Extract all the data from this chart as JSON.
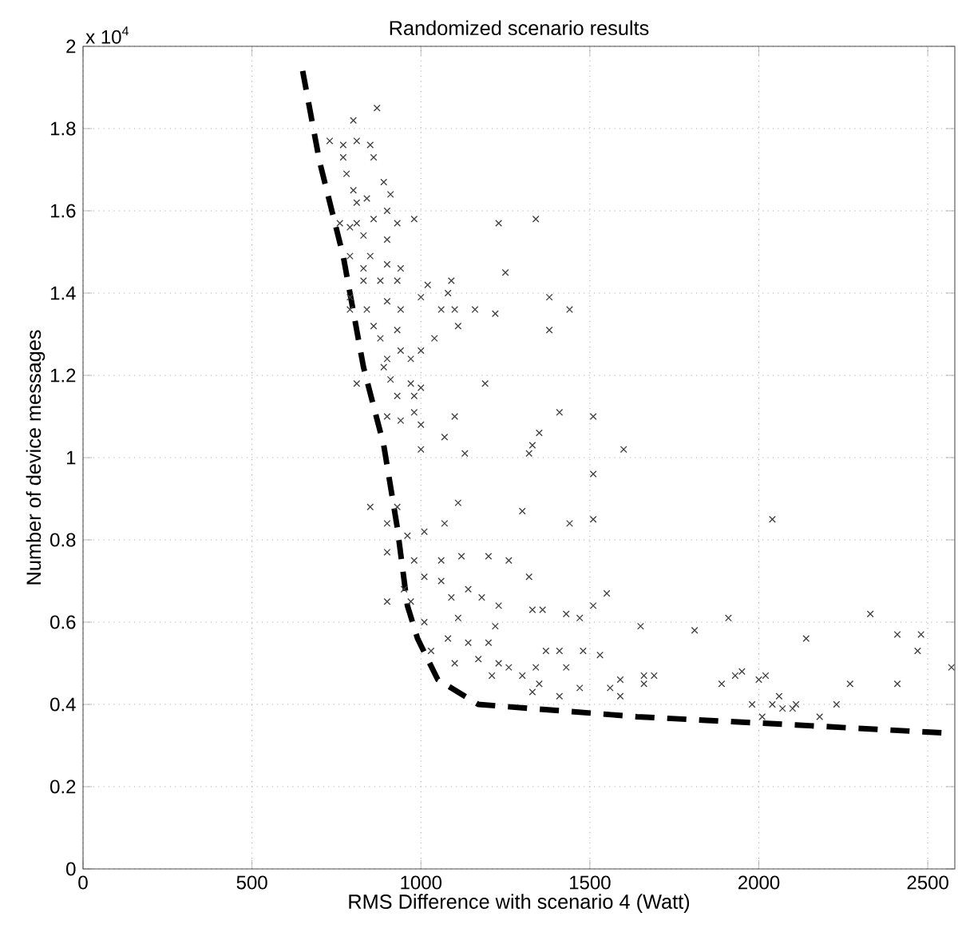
{
  "chart_data": {
    "type": "scatter",
    "title": "Randomized scenario results",
    "xlabel": "RMS Difference with scenario 4 (Watt)",
    "ylabel": "Number of device messages",
    "annotations": [
      "x 10$^{4}$"
    ],
    "xlim": [
      0,
      2580
    ],
    "ylim": [
      0,
      2
    ],
    "xticks": [
      0,
      500,
      1000,
      1500,
      2000,
      2500
    ],
    "yticks": [
      0,
      0.2,
      0.4,
      0.6,
      0.8,
      1,
      1.2,
      1.4,
      1.6,
      1.8,
      2
    ],
    "grid": true,
    "marker": "cross",
    "series": [
      {
        "color": "#404040",
        "x": [
          870,
          800,
          730,
          810,
          770,
          850,
          860,
          770,
          780,
          890,
          800,
          910,
          810,
          840,
          900,
          810,
          790,
          860,
          760,
          930,
          980,
          1230,
          1340,
          830,
          900,
          790,
          850,
          900,
          830,
          940,
          1250,
          830,
          880,
          930,
          1020,
          1090,
          790,
          900,
          1000,
          1080,
          1380,
          1440,
          790,
          840,
          940,
          1060,
          1100,
          1160,
          1220,
          860,
          930,
          1110,
          1380,
          880,
          1040,
          900,
          940,
          970,
          890,
          1000,
          910,
          970,
          810,
          1000,
          1190,
          930,
          980,
          900,
          940,
          980,
          1100,
          1410,
          1000,
          1070,
          1350,
          1510,
          1330,
          1600,
          1000,
          1130,
          1320,
          1510,
          850,
          930,
          1110,
          1300,
          1440,
          1510,
          900,
          960,
          1010,
          1070,
          900,
          980,
          1060,
          1120,
          1200,
          1260,
          1320,
          1010,
          950,
          1060,
          1140,
          1180,
          1090,
          970,
          900,
          1230,
          1330,
          1430,
          1470,
          1010,
          1110,
          1220,
          1360,
          1080,
          1140,
          1200,
          1030,
          1170,
          1230,
          1260,
          1100,
          1370,
          1410,
          1480,
          1530,
          1340,
          1430,
          1210,
          1300,
          1350,
          1330,
          1410,
          1470,
          1560,
          1590,
          1590,
          1550,
          1510,
          2040,
          1910,
          2330,
          1810,
          1650,
          2140,
          2410,
          2480,
          2470,
          2570,
          1660,
          1660,
          1690,
          1890,
          1930,
          1950,
          2000,
          2020,
          2270,
          2410,
          1980,
          2060,
          2040,
          2070,
          2100,
          2110,
          2010,
          2230,
          2180
        ],
        "values": [
          1.85,
          1.82,
          1.77,
          1.77,
          1.76,
          1.76,
          1.73,
          1.73,
          1.69,
          1.67,
          1.65,
          1.64,
          1.62,
          1.63,
          1.6,
          1.57,
          1.56,
          1.58,
          1.57,
          1.57,
          1.58,
          1.57,
          1.58,
          1.54,
          1.53,
          1.49,
          1.49,
          1.47,
          1.46,
          1.46,
          1.45,
          1.43,
          1.43,
          1.43,
          1.42,
          1.43,
          1.39,
          1.38,
          1.39,
          1.4,
          1.39,
          1.36,
          1.36,
          1.36,
          1.36,
          1.36,
          1.36,
          1.36,
          1.35,
          1.32,
          1.31,
          1.32,
          1.31,
          1.29,
          1.29,
          1.24,
          1.26,
          1.24,
          1.22,
          1.26,
          1.19,
          1.18,
          1.18,
          1.17,
          1.18,
          1.15,
          1.15,
          1.1,
          1.09,
          1.11,
          1.1,
          1.11,
          1.08,
          1.05,
          1.06,
          1.1,
          1.03,
          1.02,
          1.02,
          1.01,
          1.01,
          0.96,
          0.88,
          0.88,
          0.89,
          0.87,
          0.84,
          0.85,
          0.84,
          0.81,
          0.82,
          0.84,
          0.77,
          0.75,
          0.75,
          0.76,
          0.76,
          0.75,
          0.71,
          0.71,
          0.68,
          0.7,
          0.68,
          0.66,
          0.66,
          0.65,
          0.65,
          0.64,
          0.63,
          0.62,
          0.61,
          0.6,
          0.61,
          0.59,
          0.63,
          0.56,
          0.55,
          0.55,
          0.53,
          0.51,
          0.5,
          0.49,
          0.5,
          0.53,
          0.53,
          0.53,
          0.52,
          0.49,
          0.49,
          0.47,
          0.47,
          0.45,
          0.43,
          0.42,
          0.44,
          0.44,
          0.46,
          0.42,
          0.67,
          0.64,
          0.85,
          0.61,
          0.62,
          0.58,
          0.59,
          0.56,
          0.57,
          0.57,
          0.53,
          0.49,
          0.47,
          0.45,
          0.47,
          0.45,
          0.47,
          0.48,
          0.46,
          0.47,
          0.45,
          0.45,
          0.4,
          0.42,
          0.4,
          0.39,
          0.39,
          0.4,
          0.37,
          0.4,
          0.37
        ]
      },
      {
        "type": "line",
        "color": "#000000",
        "marker": "none",
        "line_style": "dashed",
        "x": [
          650,
          700,
          770,
          830,
          890,
          930,
          960,
          990,
          1050,
          1170,
          1640,
          2110,
          2560
        ],
        "values": [
          1.94,
          1.72,
          1.49,
          1.22,
          1.03,
          0.83,
          0.64,
          0.56,
          0.46,
          0.4,
          0.37,
          0.35,
          0.33
        ]
      }
    ]
  }
}
